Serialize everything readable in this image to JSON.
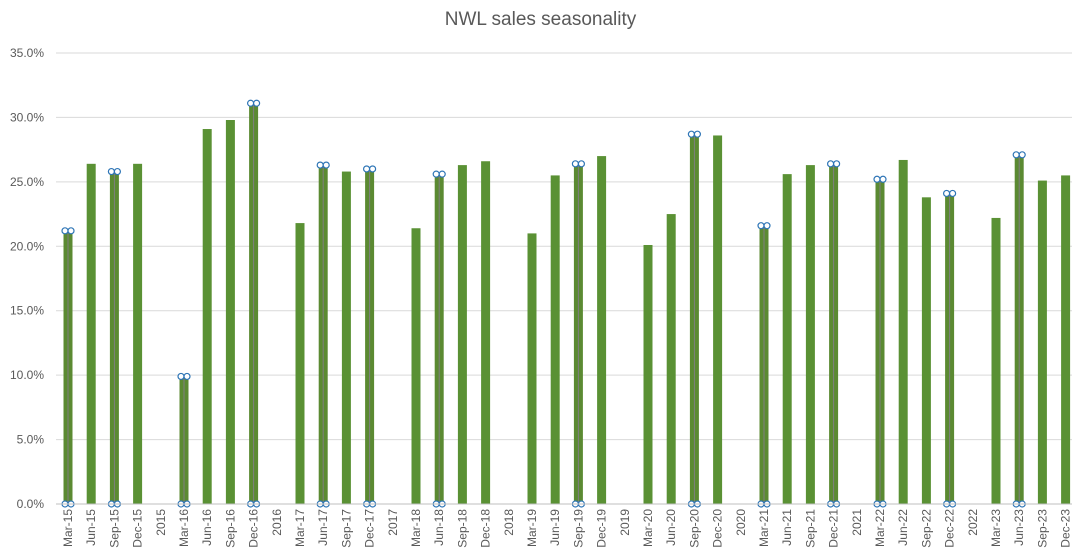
{
  "chart_data": {
    "type": "bar",
    "title": "NWL sales seasonality",
    "xlabel": "",
    "ylabel": "",
    "ylim": [
      0,
      35
    ],
    "yticks": [
      "0.0%",
      "5.0%",
      "10.0%",
      "15.0%",
      "20.0%",
      "25.0%",
      "30.0%",
      "35.0%"
    ],
    "grid": true,
    "colors": {
      "bar": "#5a9134",
      "highlight_bar": "#5b8a32",
      "marker_stroke": "#2e75b6",
      "marker_fill": "#ffffff"
    },
    "categories": [
      "Mar-15",
      "Jun-15",
      "Sep-15",
      "Dec-15",
      "2015",
      "Mar-16",
      "Jun-16",
      "Sep-16",
      "Dec-16",
      "2016",
      "Mar-17",
      "Jun-17",
      "Sep-17",
      "Dec-17",
      "2017",
      "Mar-18",
      "Jun-18",
      "Sep-18",
      "Dec-18",
      "2018",
      "Mar-19",
      "Jun-19",
      "Sep-19",
      "Dec-19",
      "2019",
      "Mar-20",
      "Jun-20",
      "Sep-20",
      "Dec-20",
      "2020",
      "Mar-21",
      "Jun-21",
      "Sep-21",
      "Dec-21",
      "2021",
      "Mar-22",
      "Jun-22",
      "Sep-22",
      "Dec-22",
      "2022",
      "Mar-23",
      "Jun-23",
      "Sep-23",
      "Dec-23"
    ],
    "values": [
      21.2,
      26.4,
      25.8,
      26.4,
      null,
      9.9,
      29.1,
      29.8,
      31.1,
      null,
      21.8,
      26.3,
      25.8,
      26.0,
      null,
      21.4,
      25.6,
      26.3,
      26.6,
      null,
      21.0,
      25.5,
      26.4,
      27.0,
      null,
      20.1,
      22.5,
      28.7,
      28.6,
      null,
      21.6,
      25.6,
      26.3,
      26.4,
      null,
      25.2,
      26.7,
      23.8,
      24.1,
      null,
      22.2,
      27.1,
      25.1,
      25.5
    ],
    "highlighted": [
      "Mar-15",
      "Sep-15",
      "Mar-16",
      "Dec-16",
      "Jun-17",
      "Dec-17",
      "Jun-18",
      "Sep-19",
      "Sep-20",
      "Mar-21",
      "Dec-21",
      "Mar-22",
      "Dec-22",
      "Jun-23"
    ]
  }
}
